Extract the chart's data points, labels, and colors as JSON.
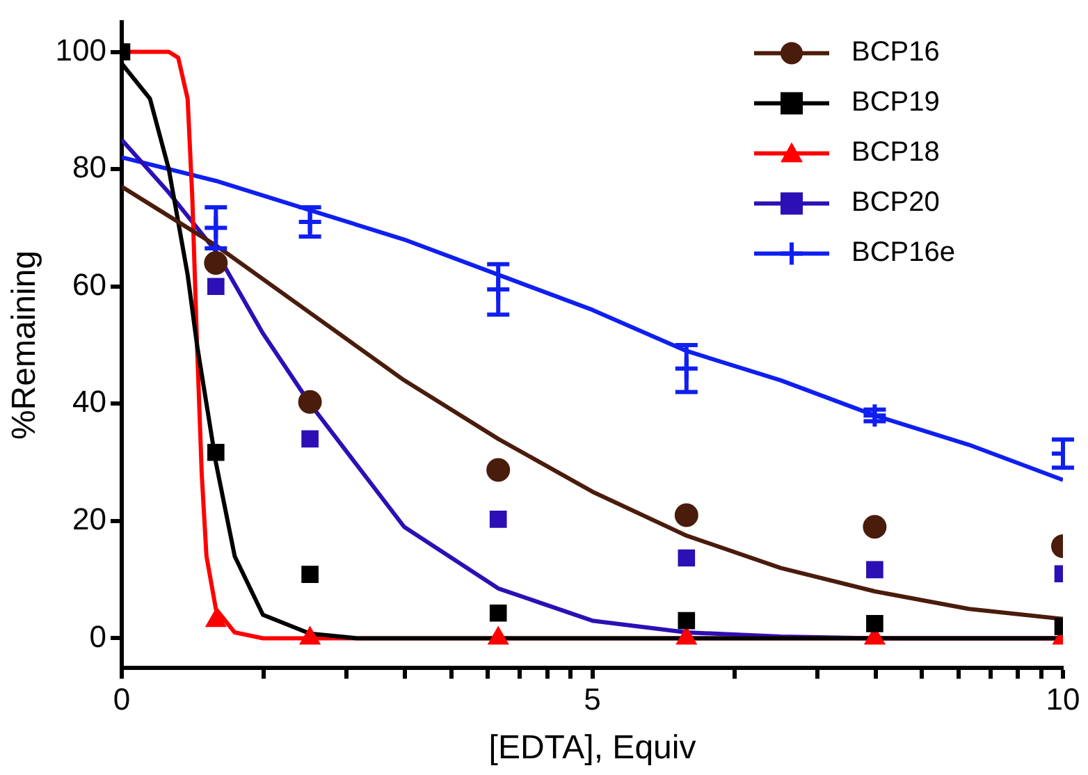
{
  "chart_data": {
    "type": "scatter",
    "xlabel": "[EDTA], Equiv",
    "ylabel": "%Remaining",
    "x": [
      0,
      1,
      2,
      4,
      6,
      8,
      10
    ],
    "xlim": [
      0,
      10
    ],
    "xticks": [
      0,
      {
        "value": 1.51,
        "label": null
      },
      {
        "value": 2.39,
        "label": null
      },
      {
        "value": 3.01,
        "label": null
      },
      {
        "value": 3.5,
        "label": null
      },
      {
        "value": 3.89,
        "label": null
      },
      {
        "value": 4.23,
        "label": null
      },
      {
        "value": 4.52,
        "label": null
      },
      {
        "value": 4.77,
        "label": null
      },
      5,
      {
        "value": 6.51,
        "label": null
      },
      {
        "value": 7.39,
        "label": null
      },
      {
        "value": 8.01,
        "label": null
      },
      {
        "value": 8.5,
        "label": null
      },
      {
        "value": 8.89,
        "label": null
      },
      {
        "value": 9.23,
        "label": null
      },
      {
        "value": 9.52,
        "label": null
      },
      {
        "value": 9.77,
        "label": null
      },
      10
    ],
    "ylim": [
      -5,
      105
    ],
    "yticks": [
      0,
      20,
      40,
      60,
      80,
      100
    ],
    "legend": "top right",
    "series": [
      {
        "name": "BCP16",
        "color": "#4a1c0c",
        "marker": "circle",
        "values": [
          null,
          64,
          40.3,
          28.7,
          21,
          19,
          15.7
        ]
      },
      {
        "name": "BCP19",
        "color": "#000000",
        "marker": "square",
        "values": [
          100,
          31.7,
          10.9,
          4.3,
          3,
          2.5,
          2
        ]
      },
      {
        "name": "BCP18",
        "color": "#ff0000",
        "marker": "triangle",
        "values": [
          null,
          3,
          0,
          0,
          0,
          0,
          0
        ]
      },
      {
        "name": "BCP20",
        "color": "#2c0fb5",
        "marker": "square",
        "values": [
          null,
          60,
          34,
          20.3,
          13.7,
          11.7,
          11
        ]
      },
      {
        "name": "BCP16e",
        "color": "#0f1ff0",
        "marker": "cross",
        "values": [
          null,
          70,
          71,
          59.5,
          46,
          38,
          31.5
        ],
        "errors": [
          null,
          3.5,
          2.5,
          4.3,
          4,
          1,
          2.4
        ]
      },
      {
        "type": "line",
        "color": "#4a1c0c",
        "marker": "none",
        "x": [
          0,
          1,
          2,
          3,
          4,
          5,
          6,
          7,
          8,
          9,
          10
        ],
        "values": [
          77,
          67,
          55.5,
          44,
          34,
          25,
          17.5,
          12,
          8,
          5,
          3.3
        ]
      },
      {
        "type": "line",
        "color": "#000000",
        "marker": "none",
        "x": [
          0,
          0.3,
          0.5,
          0.7,
          0.8,
          0.9,
          1,
          1.2,
          1.5,
          2,
          2.5,
          10
        ],
        "values": [
          98,
          92,
          80,
          62,
          50,
          40,
          30,
          14,
          4,
          0.8,
          0,
          0
        ]
      },
      {
        "type": "line",
        "color": "#ff0000",
        "marker": "none",
        "x": [
          0,
          0.5,
          0.6,
          0.7,
          0.75,
          0.8,
          0.85,
          0.9,
          1,
          1.2,
          1.5,
          10
        ],
        "values": [
          100,
          100,
          99,
          92,
          75,
          50,
          28,
          14,
          5,
          1,
          0,
          0
        ]
      },
      {
        "type": "line",
        "color": "#2c0fb5",
        "marker": "none",
        "x": [
          0,
          0.5,
          1,
          1.5,
          2,
          3,
          4,
          5,
          6,
          7,
          8,
          10
        ],
        "values": [
          85,
          76,
          66,
          52,
          40,
          19,
          8.5,
          3,
          1,
          0.3,
          0,
          0
        ]
      },
      {
        "type": "line",
        "color": "#0f1ff0",
        "marker": "none",
        "x": [
          0,
          1,
          2,
          3,
          4,
          5,
          6,
          7,
          8,
          9,
          10
        ],
        "values": [
          82,
          78,
          73,
          68,
          62,
          56,
          49,
          44,
          38,
          33,
          27
        ]
      }
    ]
  }
}
